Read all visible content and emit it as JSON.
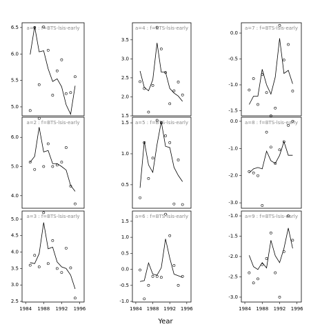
{
  "x_label": "Year",
  "chart_data": [
    {
      "type": "line-points",
      "title": "a=1 : f=BTS-lsis-early",
      "x": [
        1985,
        1986,
        1987,
        1988,
        1989,
        1990,
        1991,
        1992,
        1993,
        1994,
        1995
      ],
      "xlim": [
        1983.2,
        1997
      ],
      "ylim": [
        4.83,
        6.59
      ],
      "yticks": [
        {
          "value": 5,
          "label": "5.0"
        },
        5.5,
        {
          "value": 6,
          "label": "6.0"
        },
        6.5
      ],
      "series": [
        {
          "style": "points",
          "color": "#000000",
          "values": [
            4.93,
            6.5,
            5.42,
            6.51,
            6.07,
            5.22,
            5.68,
            5.89,
            5.25,
            5.27,
            5.57
          ]
        },
        {
          "style": "line",
          "color": "#000000",
          "values": [
            5.99,
            6.52,
            6.04,
            6.06,
            5.72,
            5.48,
            5.53,
            5.38,
            5.04,
            4.86,
            5.4
          ]
        }
      ]
    },
    {
      "type": "line-points",
      "title": "a=2 : f=BTS-lsis-early",
      "x": [
        1985,
        1986,
        1987,
        1988,
        1989,
        1990,
        1991,
        1992,
        1993,
        1994,
        1995
      ],
      "xlim": [
        1983.2,
        1997
      ],
      "ylim": [
        3.57,
        6.69
      ],
      "yticks": [
        {
          "value": 4,
          "label": "4.0"
        },
        {
          "value": 5,
          "label": "5.0"
        },
        {
          "value": 6,
          "label": "6.0"
        }
      ],
      "series": [
        {
          "style": "points",
          "color": "#000000",
          "values": [
            5.15,
            4.9,
            6.65,
            5.0,
            5.78,
            5.0,
            5.05,
            5.15,
            5.65,
            4.33,
            3.72
          ]
        },
        {
          "style": "line",
          "color": "#000000",
          "values": [
            5.15,
            5.35,
            6.35,
            5.5,
            5.55,
            5.1,
            5.1,
            5.0,
            4.88,
            4.35,
            4.15
          ]
        }
      ]
    },
    {
      "type": "line-points",
      "title": "a=3 : f=BTS-lsis-early",
      "x": [
        1985,
        1986,
        1987,
        1988,
        1989,
        1990,
        1991,
        1992,
        1993,
        1994,
        1995
      ],
      "xlim": [
        1983.2,
        1997
      ],
      "xticks": [
        1984,
        1988,
        1992,
        1996
      ],
      "ylim": [
        2.48,
        5.25
      ],
      "yticks": [
        2.5,
        {
          "value": 3,
          "label": "3.0"
        },
        3.5,
        {
          "value": 4,
          "label": "4.0"
        },
        4.5,
        {
          "value": 5,
          "label": "5.0"
        }
      ],
      "series": [
        {
          "style": "points",
          "color": "#000000",
          "values": [
            3.6,
            3.9,
            3.55,
            5.2,
            3.65,
            4.35,
            3.5,
            3.38,
            4.12,
            3.52,
            2.6
          ]
        },
        {
          "style": "line",
          "color": "#000000",
          "values": [
            3.68,
            3.65,
            3.95,
            4.9,
            4.1,
            4.15,
            3.7,
            3.55,
            3.5,
            3.3,
            2.88
          ]
        }
      ]
    },
    {
      "type": "line-points",
      "title": "a=4 : f=BTS-lsis-early",
      "x": [
        1985,
        1986,
        1987,
        1988,
        1989,
        1990,
        1991,
        1992,
        1993,
        1994,
        1995
      ],
      "xlim": [
        1983.2,
        1997
      ],
      "ylim": [
        1.5,
        3.95
      ],
      "yticks": [
        1.5,
        {
          "value": 2,
          "label": "2.0"
        },
        2.5,
        {
          "value": 3,
          "label": "3.0"
        },
        3.5
      ],
      "series": [
        {
          "style": "points",
          "color": "#000000",
          "values": [
            2.4,
            2.22,
            1.6,
            2.3,
            3.83,
            3.26,
            2.64,
            1.82,
            2.16,
            2.39,
            2.05
          ]
        },
        {
          "style": "line",
          "color": "#000000",
          "values": [
            2.68,
            2.25,
            2.16,
            2.45,
            3.42,
            2.65,
            2.65,
            2.22,
            2.1,
            2.02,
            1.88
          ]
        }
      ]
    },
    {
      "type": "line-points",
      "title": "a=5 : f=BTS-lsis-early",
      "x": [
        1985,
        1986,
        1987,
        1988,
        1989,
        1990,
        1991,
        1992,
        1993,
        1994,
        1995
      ],
      "xlim": [
        1983.2,
        1997
      ],
      "ylim": [
        0.12,
        1.59
      ],
      "yticks": [
        0.5,
        {
          "value": 1,
          "label": "1.0"
        },
        1.5
      ],
      "series": [
        {
          "style": "points",
          "color": "#000000",
          "values": [
            0.29,
            1.18,
            0.6,
            0.93,
            1.54,
            1.5,
            1.29,
            1.18,
            0.19,
            0.9,
            0.18
          ]
        },
        {
          "style": "line",
          "color": "#000000",
          "values": [
            0.45,
            1.2,
            0.82,
            0.7,
            1.15,
            1.52,
            1.12,
            1.1,
            0.78,
            0.65,
            0.55
          ]
        }
      ]
    },
    {
      "type": "line-points",
      "title": "a=6 : f=BTS-lsis-early",
      "x": [
        1985,
        1986,
        1987,
        1988,
        1989,
        1990,
        1991,
        1992,
        1993,
        1994,
        1995
      ],
      "xlim": [
        1983.2,
        1997
      ],
      "xticks": [
        1984,
        1988,
        1992,
        1996
      ],
      "ylim": [
        -1.02,
        1.82
      ],
      "yticks": [
        {
          "value": -1,
          "label": "-1.0"
        },
        -0.5,
        {
          "value": 0,
          "label": "0.0"
        },
        0.5,
        {
          "value": 1,
          "label": "1.0"
        },
        1.5
      ],
      "series": [
        {
          "style": "points",
          "color": "#000000",
          "values": [
            -0.02,
            -0.92,
            -0.5,
            -0.22,
            -0.22,
            -0.25,
            1.72,
            1.05,
            0.12,
            -0.5,
            -0.22
          ]
        },
        {
          "style": "line",
          "color": "#000000",
          "values": [
            -0.38,
            -0.35,
            0.2,
            -0.15,
            -0.18,
            0.05,
            0.95,
            0.35,
            -0.15,
            -0.2,
            -0.25
          ]
        }
      ]
    },
    {
      "type": "line-points",
      "title": "a=7 : f=BTS-lsis-early",
      "x": [
        1985,
        1986,
        1987,
        1988,
        1989,
        1990,
        1991,
        1992,
        1993,
        1994,
        1995
      ],
      "xlim": [
        1983.2,
        1997
      ],
      "ylim": [
        -1.6,
        0.2
      ],
      "yticks": [
        -1.5,
        {
          "value": -1,
          "label": "-1.0"
        },
        -0.5,
        {
          "value": 0,
          "label": "0.0"
        }
      ],
      "series": [
        {
          "style": "points",
          "color": "#000000",
          "values": [
            -1.1,
            -0.88,
            -1.38,
            -0.8,
            -1.15,
            -1.6,
            -1.45,
            0.15,
            -0.52,
            -0.22,
            -1.12
          ]
        },
        {
          "style": "line",
          "color": "#000000",
          "values": [
            -1.38,
            -1.22,
            -1.22,
            -0.7,
            -1.0,
            -1.18,
            -0.85,
            -0.1,
            -0.78,
            -0.72,
            -0.98
          ]
        }
      ]
    },
    {
      "type": "line-points",
      "title": "a=8 : f=BTS-lsis-early",
      "x": [
        1985,
        1986,
        1987,
        1988,
        1989,
        1990,
        1991,
        1992,
        1993,
        1994,
        1995
      ],
      "xlim": [
        1983.2,
        1997
      ],
      "ylim": [
        -3.2,
        0.15
      ],
      "yticks": [
        {
          "value": -3,
          "label": "-3.0"
        },
        {
          "value": -2,
          "label": "-2.0"
        },
        {
          "value": -1,
          "label": "-1.0"
        },
        {
          "value": 0,
          "label": "0.0"
        }
      ],
      "series": [
        {
          "style": "points",
          "color": "#000000",
          "values": [
            -1.85,
            -1.9,
            -2.0,
            -3.1,
            -0.4,
            -0.95,
            -1.55,
            -1.05,
            -0.75,
            -0.15,
            0.0
          ]
        },
        {
          "style": "line",
          "color": "#000000",
          "values": [
            -1.9,
            -1.75,
            -1.7,
            -1.75,
            -1.1,
            -1.45,
            -1.55,
            -1.25,
            -0.75,
            -1.25,
            -1.25
          ]
        }
      ]
    },
    {
      "type": "line-points",
      "title": "a=9 : f=BTS-lsis-early",
      "x": [
        1985,
        1986,
        1987,
        1988,
        1989,
        1990,
        1991,
        1992,
        1993,
        1994,
        1995
      ],
      "xlim": [
        1983.2,
        1997
      ],
      "xticks": [
        1984,
        1988,
        1992,
        1996
      ],
      "ylim": [
        -3.12,
        -0.88
      ],
      "yticks": [
        {
          "value": -3,
          "label": "-3.0"
        },
        -2.5,
        {
          "value": -2,
          "label": "-2.0"
        },
        -1.5,
        {
          "value": -1,
          "label": "-1.0"
        }
      ],
      "series": [
        {
          "style": "points",
          "color": "#000000",
          "values": [
            -2.4,
            -2.65,
            -2.55,
            -2.2,
            -2.05,
            -1.42,
            -2.4,
            -3.0,
            -1.88,
            -1.0,
            -1.6
          ]
        },
        {
          "style": "line",
          "color": "#000000",
          "values": [
            -1.97,
            -2.25,
            -2.32,
            -2.15,
            -2.28,
            -1.6,
            -1.98,
            -2.15,
            -1.8,
            -1.3,
            -1.8
          ]
        }
      ]
    }
  ]
}
